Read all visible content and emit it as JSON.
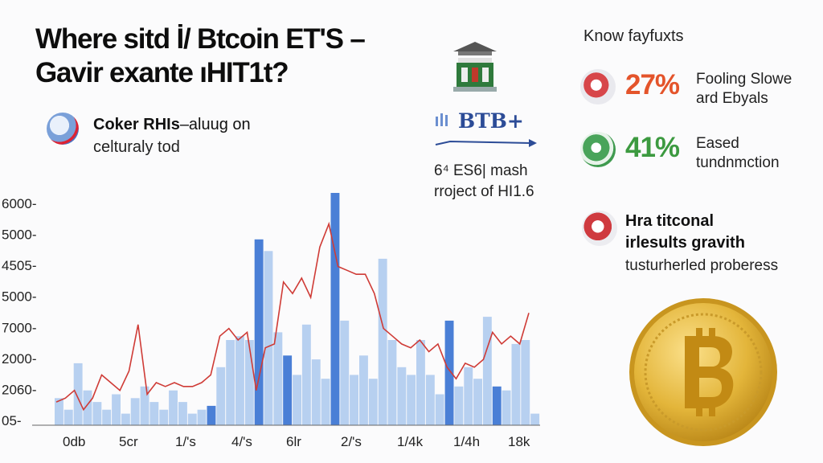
{
  "title": {
    "line1": "Where sitd İ/ Btcoin ET'S –",
    "line2": "Gavir exante ıHIT1t?"
  },
  "subtitle": {
    "bold": "Coker RHIs",
    "rest": "–aluug on",
    "line2": "celturaly tod"
  },
  "center": {
    "badge": "BTB+",
    "line1": "6⁴ ES6| mash",
    "line2": "rroject of HI1.6"
  },
  "right": {
    "heading": "Know fayfuxts",
    "items": [
      {
        "value": "27%",
        "line1": "Fooling Slowe",
        "line2": "ard Ebyals"
      },
      {
        "value": "41%",
        "line1": "Eased",
        "line2": "tundnmction"
      }
    ],
    "note": {
      "line1": "Hra titconal",
      "line2": "irlesults gravith",
      "line3": "tusturherled proberess"
    }
  },
  "colors": {
    "bar_dark": "#4a7fd6",
    "bar_light": "#b7d0f0",
    "line": "#cf3b36",
    "accent_orange": "#e4542b",
    "accent_green": "#3c9a40",
    "coin": "#e3b53a"
  },
  "icons": [
    "globe-icon",
    "building-icon",
    "chart-bars-icon",
    "bitcoin-coin-icon"
  ],
  "chart_data": {
    "type": "bar",
    "y_tick_labels": [
      "6000-",
      "5000-",
      "4505-",
      "5000-",
      "7000-",
      "2000-",
      "2060-",
      "05-"
    ],
    "x_tick_labels": [
      "0db",
      "5cr",
      "1/'s",
      "4/'s",
      "6lr",
      "2/'s",
      "1/4k",
      "1/4h",
      "18k"
    ],
    "bar_scale": [
      0,
      6000
    ],
    "bars": [
      {
        "v": 700,
        "s": "light"
      },
      {
        "v": 400,
        "s": "light"
      },
      {
        "v": 1600,
        "s": "light"
      },
      {
        "v": 900,
        "s": "light"
      },
      {
        "v": 600,
        "s": "light"
      },
      {
        "v": 400,
        "s": "light"
      },
      {
        "v": 800,
        "s": "light"
      },
      {
        "v": 300,
        "s": "light"
      },
      {
        "v": 700,
        "s": "light"
      },
      {
        "v": 1000,
        "s": "light"
      },
      {
        "v": 600,
        "s": "light"
      },
      {
        "v": 400,
        "s": "light"
      },
      {
        "v": 900,
        "s": "light"
      },
      {
        "v": 600,
        "s": "light"
      },
      {
        "v": 300,
        "s": "light"
      },
      {
        "v": 400,
        "s": "light"
      },
      {
        "v": 500,
        "s": "dark"
      },
      {
        "v": 1500,
        "s": "light"
      },
      {
        "v": 2200,
        "s": "light"
      },
      {
        "v": 2300,
        "s": "light"
      },
      {
        "v": 2200,
        "s": "light"
      },
      {
        "v": 4800,
        "s": "dark"
      },
      {
        "v": 4500,
        "s": "light"
      },
      {
        "v": 2400,
        "s": "light"
      },
      {
        "v": 1800,
        "s": "dark"
      },
      {
        "v": 1300,
        "s": "light"
      },
      {
        "v": 2600,
        "s": "light"
      },
      {
        "v": 1700,
        "s": "light"
      },
      {
        "v": 1200,
        "s": "light"
      },
      {
        "v": 6000,
        "s": "dark"
      },
      {
        "v": 2700,
        "s": "light"
      },
      {
        "v": 1300,
        "s": "light"
      },
      {
        "v": 1800,
        "s": "light"
      },
      {
        "v": 1200,
        "s": "light"
      },
      {
        "v": 4300,
        "s": "light"
      },
      {
        "v": 2200,
        "s": "light"
      },
      {
        "v": 1500,
        "s": "light"
      },
      {
        "v": 1300,
        "s": "light"
      },
      {
        "v": 2200,
        "s": "light"
      },
      {
        "v": 1300,
        "s": "light"
      },
      {
        "v": 800,
        "s": "light"
      },
      {
        "v": 2700,
        "s": "dark"
      },
      {
        "v": 1000,
        "s": "light"
      },
      {
        "v": 1500,
        "s": "light"
      },
      {
        "v": 1200,
        "s": "light"
      },
      {
        "v": 2800,
        "s": "light"
      },
      {
        "v": 1000,
        "s": "dark"
      },
      {
        "v": 900,
        "s": "light"
      },
      {
        "v": 2100,
        "s": "light"
      },
      {
        "v": 2200,
        "s": "light"
      },
      {
        "v": 300,
        "s": "light"
      }
    ],
    "line_values": [
      600,
      700,
      900,
      400,
      700,
      1300,
      1100,
      900,
      1400,
      2600,
      800,
      1100,
      1000,
      1100,
      1000,
      1000,
      1100,
      1300,
      2300,
      2500,
      2200,
      2400,
      900,
      2000,
      2100,
      3700,
      3400,
      3800,
      3300,
      4600,
      5200,
      4100,
      4000,
      3900,
      3900,
      3400,
      2500,
      2300,
      2100,
      2000,
      2200,
      1900,
      2100,
      1500,
      1200,
      1600,
      1500,
      1700,
      2400,
      2100,
      2300,
      2100,
      2900
    ]
  }
}
